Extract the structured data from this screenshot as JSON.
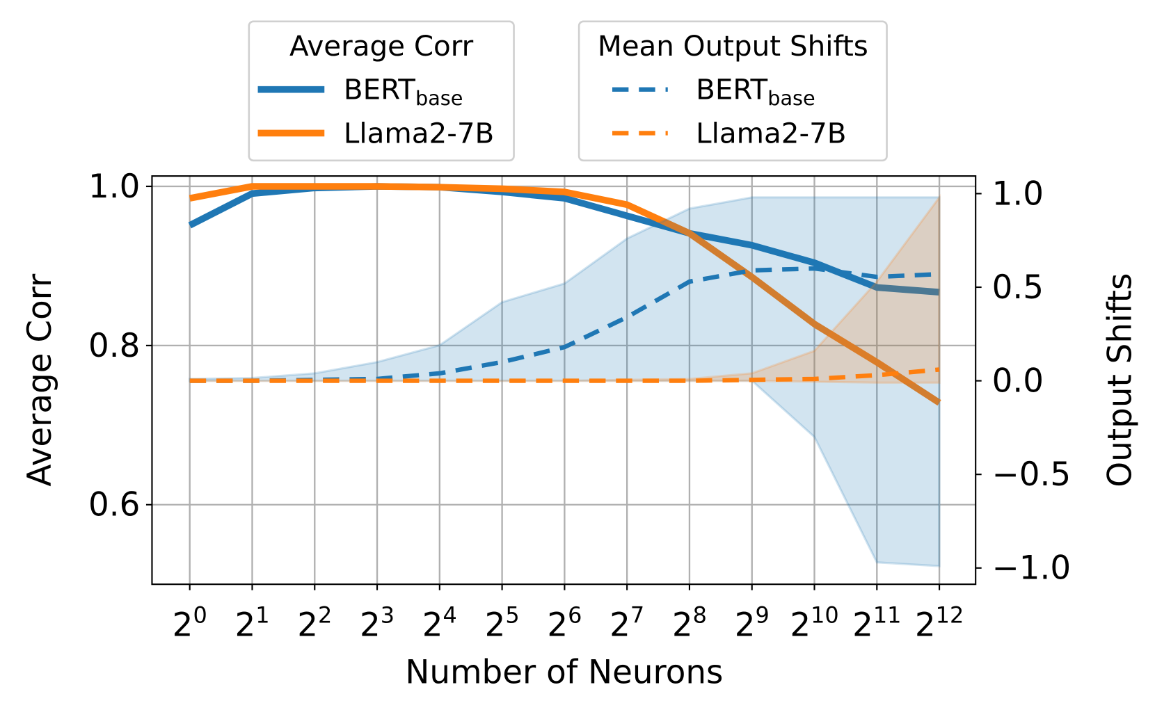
{
  "chart_data": {
    "type": "line",
    "xlabel": "Number of Neurons",
    "ylabel_left": "Average Corr",
    "ylabel_right": "Output Shifts",
    "x_ticks": [
      {
        "base": "2",
        "exp": "0"
      },
      {
        "base": "2",
        "exp": "1"
      },
      {
        "base": "2",
        "exp": "2"
      },
      {
        "base": "2",
        "exp": "3"
      },
      {
        "base": "2",
        "exp": "4"
      },
      {
        "base": "2",
        "exp": "5"
      },
      {
        "base": "2",
        "exp": "6"
      },
      {
        "base": "2",
        "exp": "7"
      },
      {
        "base": "2",
        "exp": "8"
      },
      {
        "base": "2",
        "exp": "9"
      },
      {
        "base": "2",
        "exp": "10"
      },
      {
        "base": "2",
        "exp": "11"
      },
      {
        "base": "2",
        "exp": "12"
      }
    ],
    "x": [
      1,
      2,
      4,
      8,
      16,
      32,
      64,
      128,
      256,
      512,
      1024,
      2048,
      4096
    ],
    "x_scale": "log2",
    "ylim_left": [
      0.5,
      1.013
    ],
    "ylim_right": [
      -1.087,
      1.094
    ],
    "left_ticks": [
      "0.6",
      "0.8",
      "1.0"
    ],
    "right_ticks": [
      "−1.0",
      "−0.5",
      "0.0",
      "0.5",
      "1.0"
    ],
    "grid": true,
    "colors": {
      "bert": "#1f77b4",
      "llama": "#ff7f0e"
    },
    "series_corr": [
      {
        "name": {
          "main": "BERT",
          "sub": "base"
        },
        "color_key": "bert",
        "values": [
          0.951,
          0.991,
          0.998,
          1.0,
          0.999,
          0.993,
          0.985,
          0.963,
          0.941,
          0.926,
          0.904,
          0.873,
          0.867
        ]
      },
      {
        "name": {
          "main": "Llama2-7B",
          "sub": ""
        },
        "color_key": "llama",
        "values": [
          0.985,
          1.0,
          1.0,
          1.0,
          0.999,
          0.997,
          0.993,
          0.977,
          0.941,
          0.886,
          0.827,
          0.779,
          0.728
        ]
      }
    ],
    "series_shift": [
      {
        "name": {
          "main": "BERT",
          "sub": "base"
        },
        "color_key": "bert",
        "mean": [
          0.0,
          0.0,
          0.005,
          0.01,
          0.04,
          0.1,
          0.18,
          0.34,
          0.53,
          0.59,
          0.6,
          0.555,
          0.57
        ],
        "upper": [
          0.01,
          0.015,
          0.04,
          0.1,
          0.19,
          0.42,
          0.52,
          0.76,
          0.92,
          0.98,
          0.98,
          0.98,
          0.98
        ],
        "lower": [
          0.0,
          0.0,
          0.0,
          0.0,
          0.0,
          0.0,
          0.0,
          0.0,
          0.0,
          0.0,
          -0.3,
          -0.97,
          -0.99
        ]
      },
      {
        "name": {
          "main": "Llama2-7B",
          "sub": ""
        },
        "color_key": "llama",
        "mean": [
          0,
          0,
          0,
          0,
          0,
          0,
          0,
          0,
          0,
          0.005,
          0.01,
          0.03,
          0.06
        ],
        "upper": [
          0,
          0,
          0,
          0,
          0,
          0,
          0,
          0.005,
          0.01,
          0.04,
          0.16,
          0.53,
          0.98
        ],
        "lower": [
          0,
          0,
          0,
          0,
          0,
          0,
          0,
          0,
          0,
          0,
          -0.005,
          -0.01,
          -0.01
        ]
      }
    ],
    "legends": [
      {
        "title": "Average Corr",
        "style": "solid",
        "placement": "upper-left-outside"
      },
      {
        "title": "Mean Output Shifts",
        "style": "dashed",
        "placement": "upper-right-outside"
      }
    ]
  }
}
